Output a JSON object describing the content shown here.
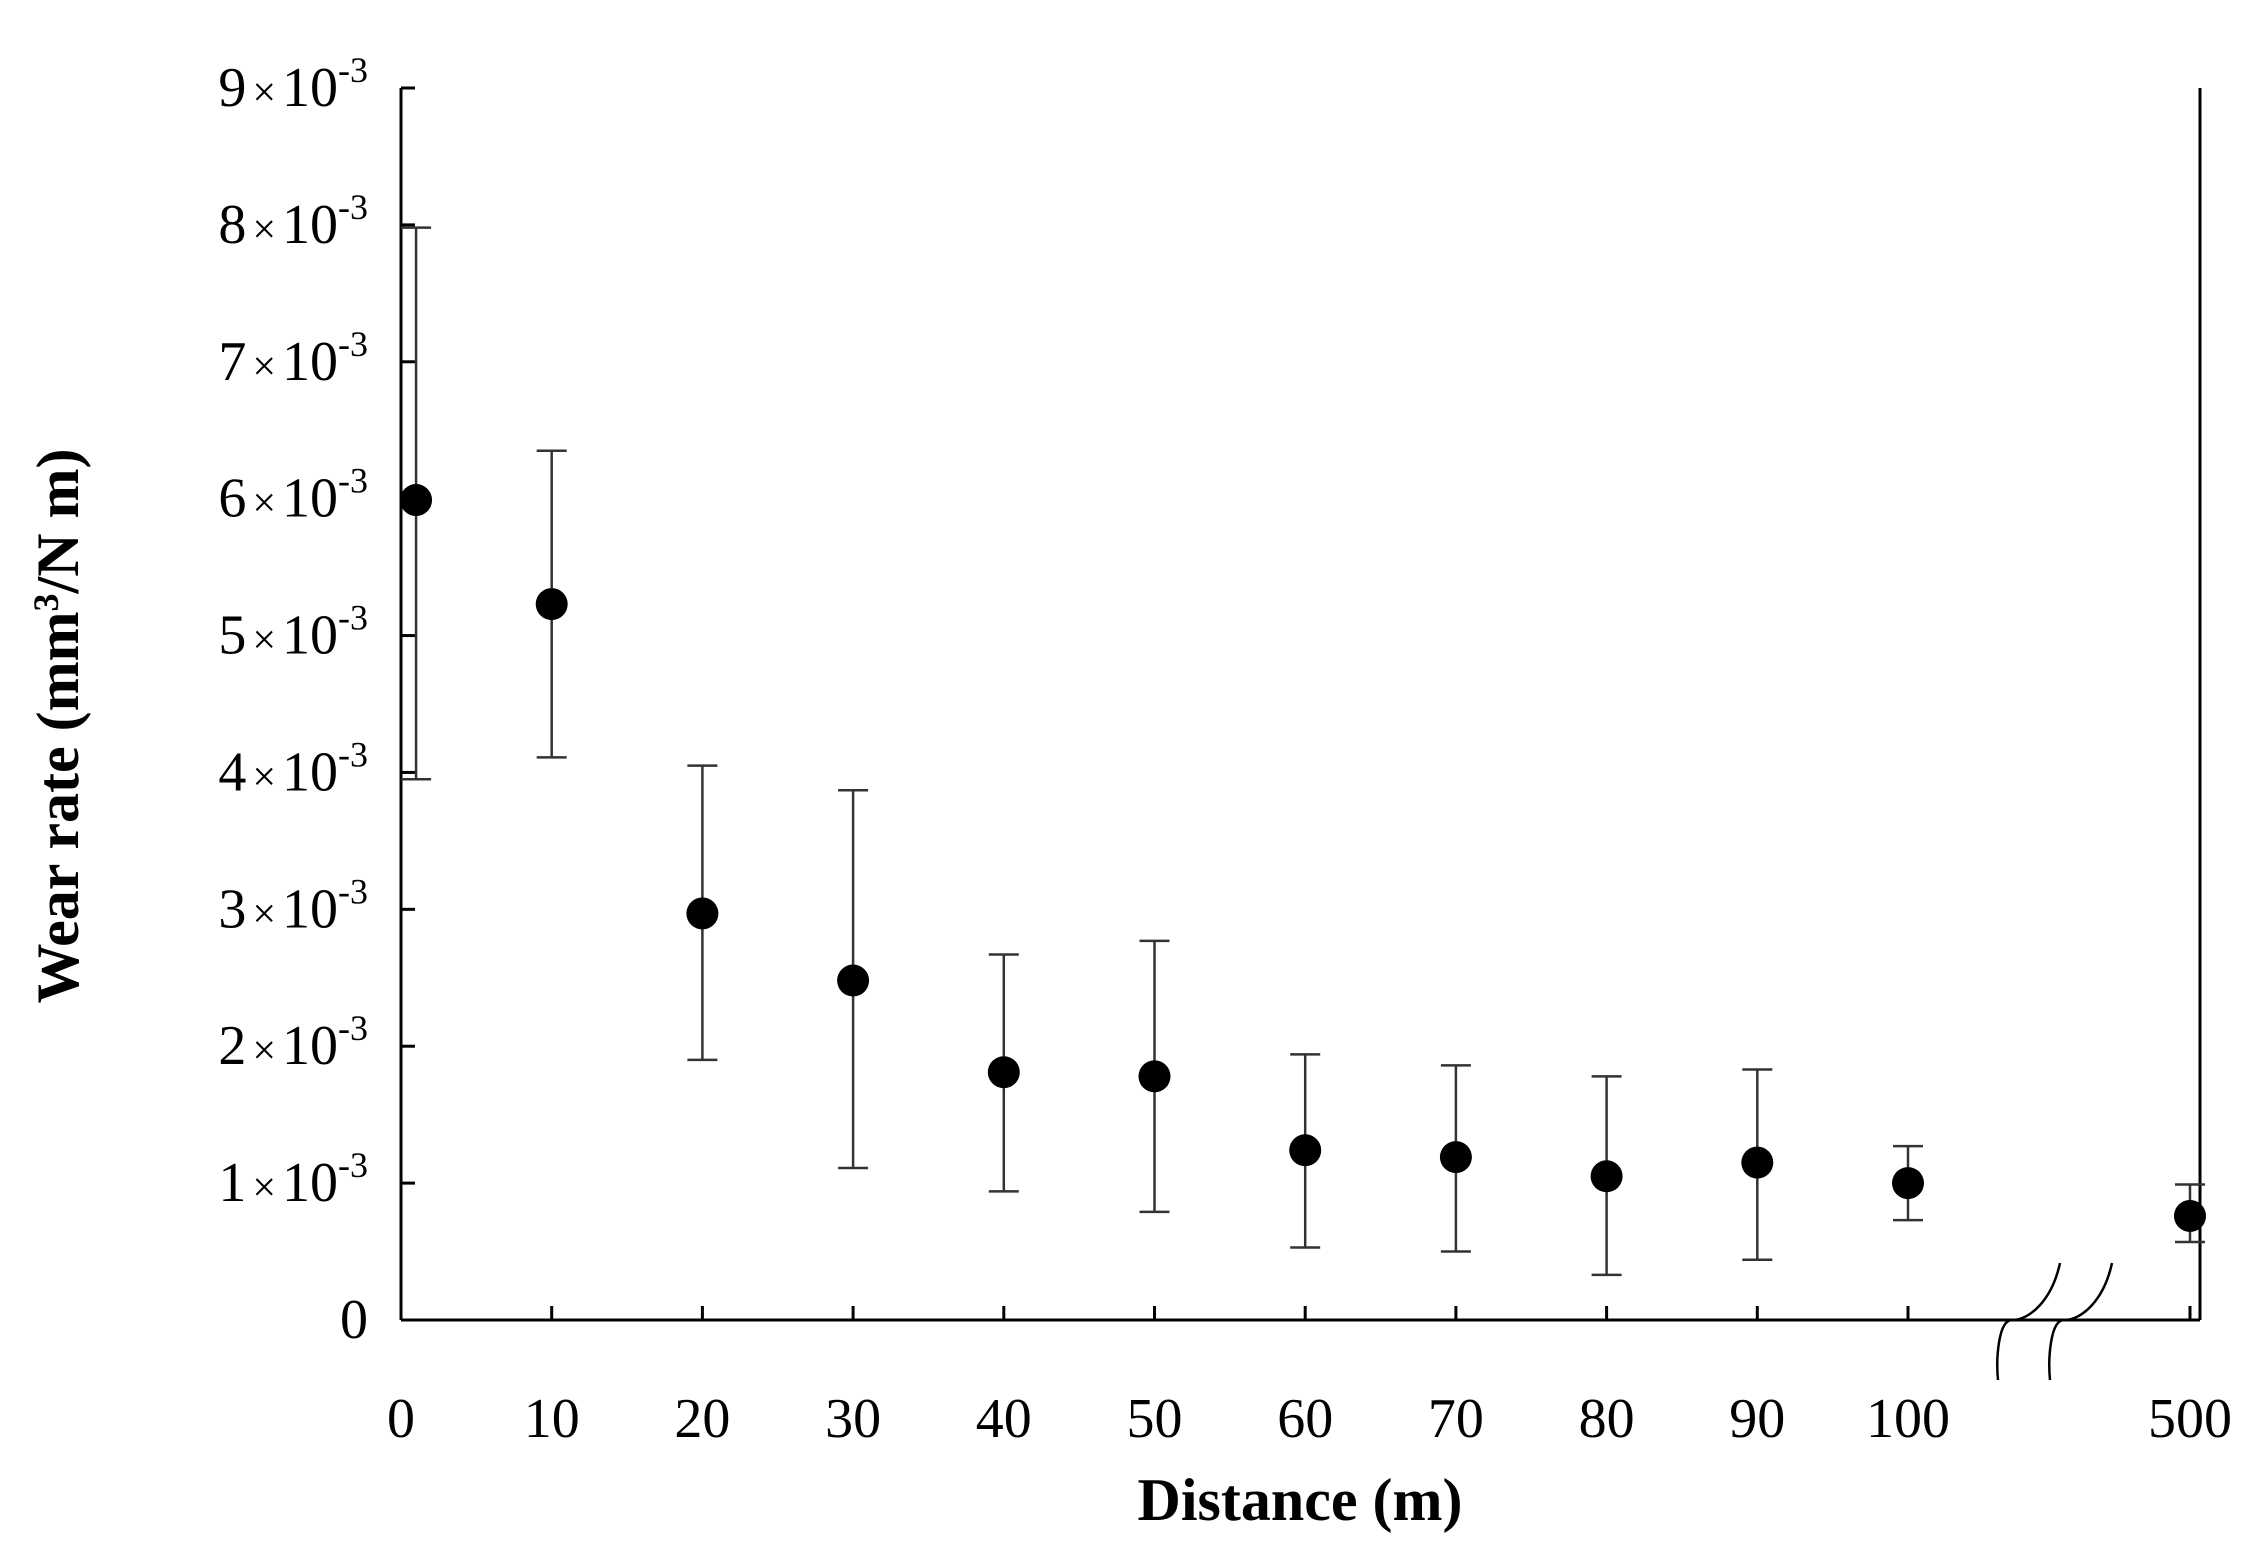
{
  "chart_data": {
    "type": "scatter",
    "xlabel": "Distance (m)",
    "ylabel": {
      "base": "Wear rate (mm",
      "superscript": "3",
      "suffix": "/N m)"
    },
    "x_categories": [
      "0",
      "10",
      "20",
      "30",
      "40",
      "50",
      "60",
      "70",
      "80",
      "90",
      "100",
      "500"
    ],
    "x_axis_break": "between 100 and 500",
    "ylim": [
      0,
      0.009
    ],
    "y_ticks": [
      {
        "value": 0,
        "mantissa": "0",
        "times": "",
        "base": "",
        "exponent": ""
      },
      {
        "value": 0.001,
        "mantissa": "1",
        "times": "×",
        "base": "10",
        "exponent": "-3"
      },
      {
        "value": 0.002,
        "mantissa": "2",
        "times": "×",
        "base": "10",
        "exponent": "-3"
      },
      {
        "value": 0.003,
        "mantissa": "3",
        "times": "×",
        "base": "10",
        "exponent": "-3"
      },
      {
        "value": 0.004,
        "mantissa": "4",
        "times": "×",
        "base": "10",
        "exponent": "-3"
      },
      {
        "value": 0.005,
        "mantissa": "5",
        "times": "×",
        "base": "10",
        "exponent": "-3"
      },
      {
        "value": 0.006,
        "mantissa": "6",
        "times": "×",
        "base": "10",
        "exponent": "-3"
      },
      {
        "value": 0.007,
        "mantissa": "7",
        "times": "×",
        "base": "10",
        "exponent": "-3"
      },
      {
        "value": 0.008,
        "mantissa": "8",
        "times": "×",
        "base": "10",
        "exponent": "-3"
      },
      {
        "value": 0.009,
        "mantissa": "9",
        "times": "×",
        "base": "10",
        "exponent": "-3"
      }
    ],
    "points": [
      {
        "x": 1,
        "y": 0.00599,
        "y_low": 0.00395,
        "y_high": 0.00798
      },
      {
        "x": 10,
        "y": 0.00523,
        "y_low": 0.00411,
        "y_high": 0.00635
      },
      {
        "x": 20,
        "y": 0.00297,
        "y_low": 0.0019,
        "y_high": 0.00405
      },
      {
        "x": 30,
        "y": 0.00248,
        "y_low": 0.00111,
        "y_high": 0.00387
      },
      {
        "x": 40,
        "y": 0.00181,
        "y_low": 0.00094,
        "y_high": 0.00267
      },
      {
        "x": 50,
        "y": 0.00178,
        "y_low": 0.00079,
        "y_high": 0.00277
      },
      {
        "x": 60,
        "y": 0.00124,
        "y_low": 0.00053,
        "y_high": 0.00194
      },
      {
        "x": 70,
        "y": 0.00119,
        "y_low": 0.0005,
        "y_high": 0.00186
      },
      {
        "x": 80,
        "y": 0.00105,
        "y_low": 0.00033,
        "y_high": 0.00178
      },
      {
        "x": 90,
        "y": 0.00115,
        "y_low": 0.00044,
        "y_high": 0.00183
      },
      {
        "x": 100,
        "y": 0.001,
        "y_low": 0.00073,
        "y_high": 0.00127
      },
      {
        "x": 500,
        "y": 0.00076,
        "y_low": 0.00057,
        "y_high": 0.00099
      }
    ],
    "marker": "filled circle",
    "marker_color": "#000000",
    "errorbar_color": "#333333",
    "grid": false,
    "legend": "none"
  }
}
